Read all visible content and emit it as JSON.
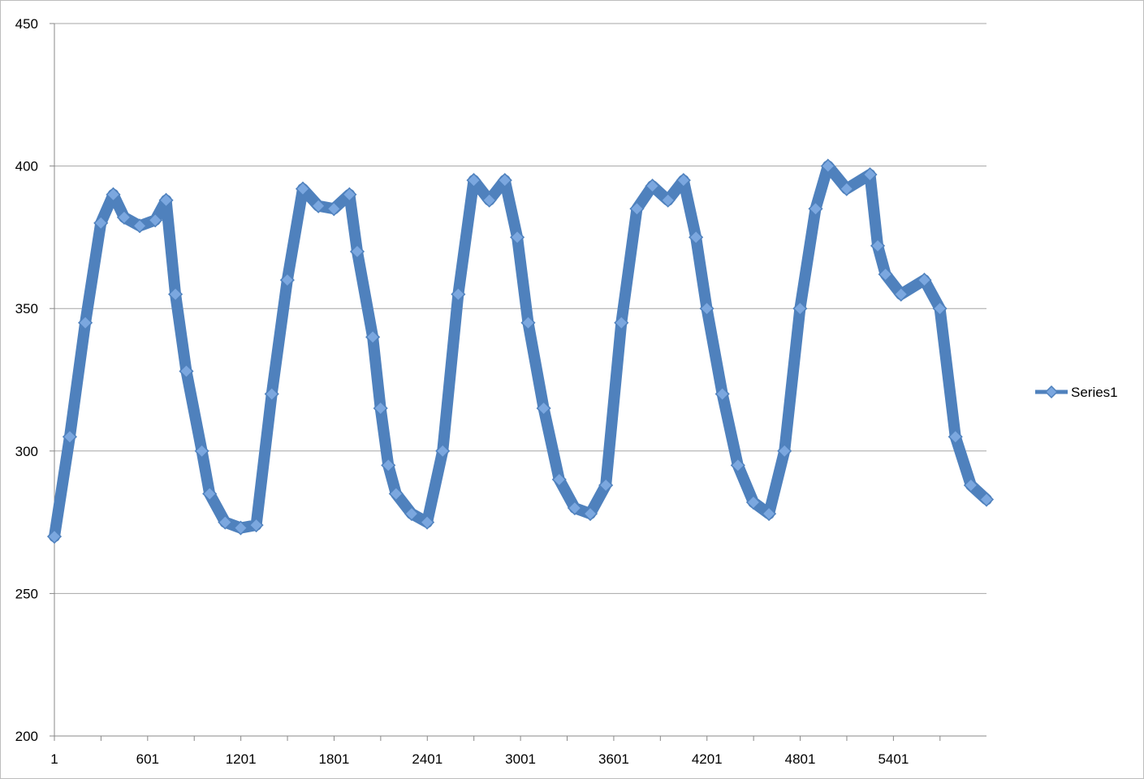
{
  "chart_data": {
    "type": "line",
    "title": "",
    "xlabel": "",
    "ylabel": "",
    "ylim": [
      200,
      450
    ],
    "yticks": [
      200,
      250,
      300,
      350,
      400,
      450
    ],
    "xlim": [
      1,
      6000
    ],
    "xtick_labels": [
      "1",
      "601",
      "1201",
      "1801",
      "2401",
      "3001",
      "3601",
      "4201",
      "4801",
      "5401"
    ],
    "xtick_values": [
      1,
      601,
      1201,
      1801,
      2401,
      3001,
      3601,
      4201,
      4801,
      5401
    ],
    "grid": "horizontal",
    "legend_position": "right",
    "series": [
      {
        "name": "Series1",
        "color": "#4F81BD",
        "marker_fill": "#7BA7DF",
        "marker": "diamond",
        "x": [
          1,
          100,
          200,
          300,
          380,
          450,
          550,
          650,
          720,
          780,
          850,
          950,
          1000,
          1100,
          1200,
          1300,
          1400,
          1500,
          1600,
          1700,
          1800,
          1900,
          1950,
          2050,
          2100,
          2150,
          2200,
          2300,
          2400,
          2500,
          2600,
          2700,
          2800,
          2900,
          2980,
          3050,
          3150,
          3250,
          3350,
          3450,
          3550,
          3650,
          3750,
          3850,
          3950,
          4050,
          4130,
          4200,
          4300,
          4400,
          4500,
          4600,
          4700,
          4800,
          4900,
          4980,
          5100,
          5250,
          5300,
          5350,
          5450,
          5600,
          5700,
          5800,
          5900,
          6000
        ],
        "y": [
          270,
          305,
          345,
          380,
          390,
          382,
          379,
          381,
          388,
          355,
          328,
          300,
          285,
          275,
          273,
          274,
          320,
          360,
          392,
          386,
          385,
          390,
          370,
          340,
          315,
          295,
          285,
          278,
          275,
          300,
          355,
          395,
          388,
          395,
          375,
          345,
          315,
          290,
          280,
          278,
          288,
          345,
          385,
          393,
          388,
          395,
          375,
          350,
          320,
          295,
          282,
          278,
          300,
          350,
          385,
          400,
          392,
          397,
          372,
          362,
          355,
          360,
          350,
          305,
          288,
          283
        ]
      }
    ]
  }
}
